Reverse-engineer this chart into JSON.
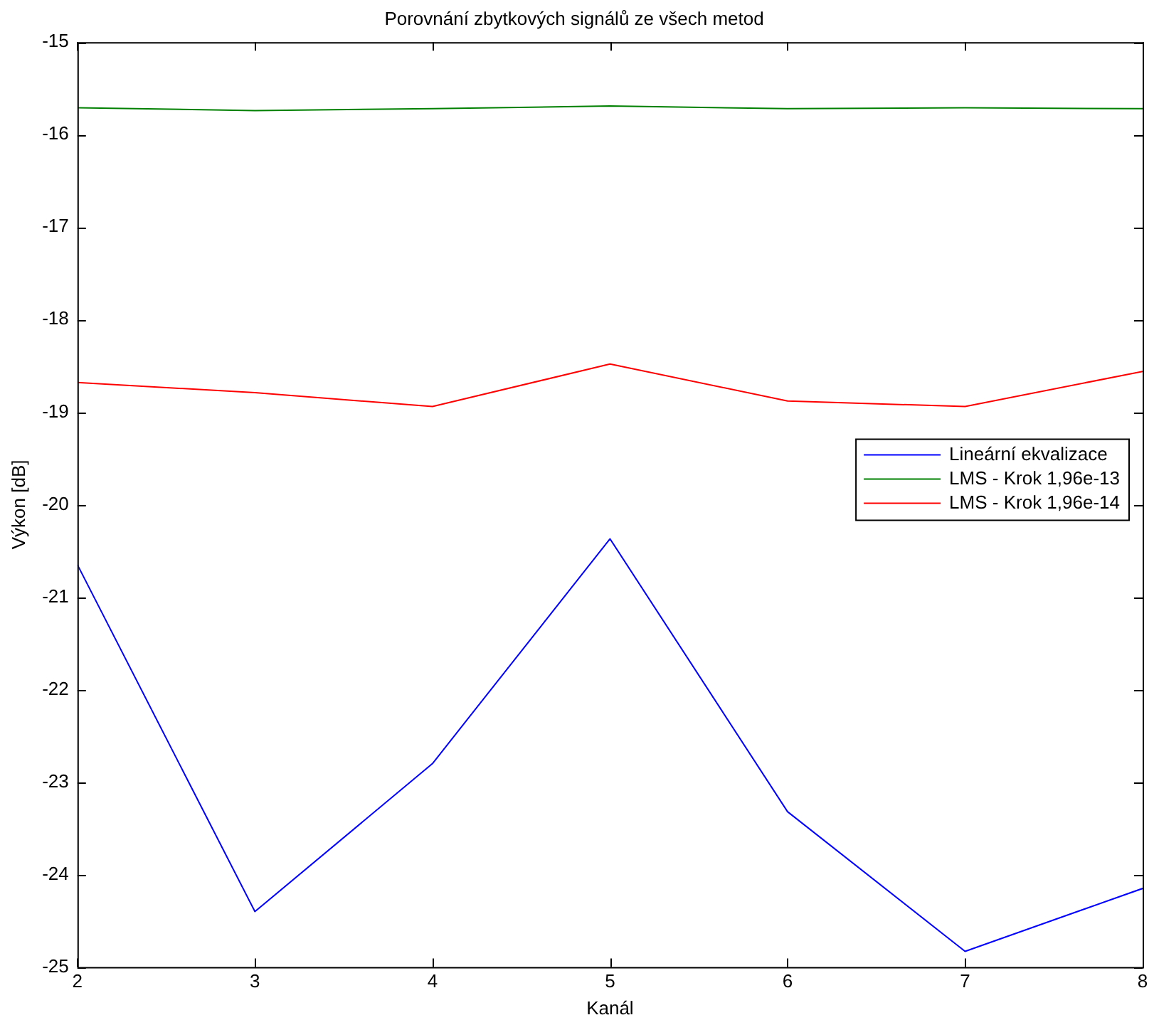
{
  "chart_data": {
    "type": "line",
    "title": "Porovnání zbytkových signálů ze všech metod",
    "xlabel": "Kanál",
    "ylabel": "Výkon [dB]",
    "x": [
      2,
      3,
      4,
      5,
      6,
      7,
      8
    ],
    "series": [
      {
        "name": "Lineární ekvalizace",
        "color": "#0000ff",
        "values": [
          -20.65,
          -24.4,
          -22.8,
          -20.37,
          -23.32,
          -24.83,
          -24.15
        ]
      },
      {
        "name": "LMS - Krok 1,96e-13",
        "color": "#008000",
        "values": [
          -15.71,
          -15.74,
          -15.72,
          -15.69,
          -15.72,
          -15.71,
          -15.72
        ]
      },
      {
        "name": "LMS - Krok 1,96e-14",
        "color": "#ff0000",
        "values": [
          -18.68,
          -18.79,
          -18.94,
          -18.48,
          -18.88,
          -18.94,
          -18.56
        ]
      }
    ],
    "xlim": [
      2,
      8
    ],
    "xticks": [
      2,
      3,
      4,
      5,
      6,
      7,
      8
    ],
    "ylim": [
      -25,
      -15
    ],
    "yticks": [
      -25,
      -24,
      -23,
      -22,
      -21,
      -20,
      -19,
      -18,
      -17,
      -16,
      -15
    ],
    "grid": false,
    "legend": "right",
    "marker": "none",
    "line_style": "solid"
  }
}
